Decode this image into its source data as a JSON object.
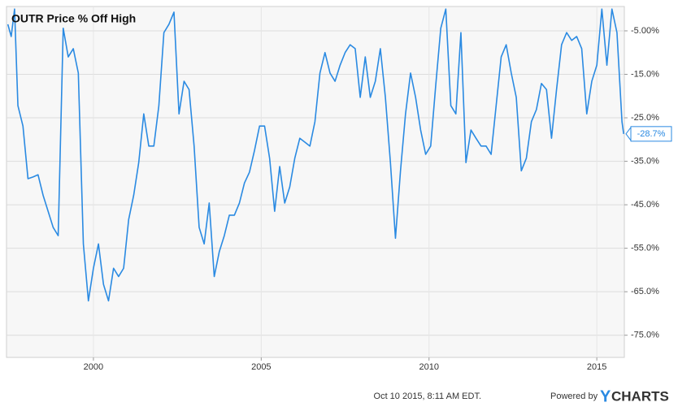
{
  "chart_data": {
    "type": "line",
    "title": "OUTR Price % Off High",
    "timestamp": "Oct 10 2015, 8:11 AM EDT.",
    "powered_by": "Powered by",
    "brand_y": "Y",
    "brand_rest": "CHARTS",
    "xlim": [
      1997.41,
      2015.82
    ],
    "ylim": [
      -80.1,
      0.6
    ],
    "xticks": [
      2000,
      2005,
      2010,
      2015
    ],
    "yticks": [
      {
        "value": -5,
        "label": "-5.00%"
      },
      {
        "value": -15,
        "label": "-15.0%"
      },
      {
        "value": -25,
        "label": "-25.0%"
      },
      {
        "value": -35,
        "label": "-35.0%"
      },
      {
        "value": -45,
        "label": "-45.0%"
      },
      {
        "value": -55,
        "label": "-55.0%"
      },
      {
        "value": -65,
        "label": "-65.0%"
      },
      {
        "value": -75,
        "label": "-75.0%"
      }
    ],
    "grid": true,
    "series": [
      {
        "name": "OUTR Price % Off High",
        "color": "#2a8ae2",
        "x": [
          1997.45,
          1997.55,
          1997.65,
          1997.75,
          1997.9,
          1998.05,
          1998.2,
          1998.35,
          1998.5,
          1998.65,
          1998.8,
          1998.95,
          1999.1,
          1999.25,
          1999.4,
          1999.55,
          1999.7,
          1999.85,
          2000,
          2000.15,
          2000.3,
          2000.45,
          2000.6,
          2000.75,
          2000.9,
          2001.05,
          2001.2,
          2001.35,
          2001.5,
          2001.65,
          2001.8,
          2001.95,
          2002.1,
          2002.25,
          2002.4,
          2002.55,
          2002.7,
          2002.85,
          2003,
          2003.15,
          2003.3,
          2003.45,
          2003.6,
          2003.75,
          2003.9,
          2004.05,
          2004.2,
          2004.35,
          2004.5,
          2004.65,
          2004.8,
          2004.95,
          2005.1,
          2005.25,
          2005.4,
          2005.55,
          2005.7,
          2005.85,
          2006,
          2006.15,
          2006.3,
          2006.45,
          2006.6,
          2006.75,
          2006.9,
          2007.05,
          2007.2,
          2007.35,
          2007.5,
          2007.65,
          2007.8,
          2007.95,
          2008.1,
          2008.25,
          2008.4,
          2008.55,
          2008.7,
          2008.85,
          2009,
          2009.15,
          2009.3,
          2009.45,
          2009.6,
          2009.75,
          2009.9,
          2010.05,
          2010.2,
          2010.35,
          2010.5,
          2010.65,
          2010.8,
          2010.95,
          2011.1,
          2011.25,
          2011.4,
          2011.55,
          2011.7,
          2011.85,
          2012,
          2012.15,
          2012.3,
          2012.45,
          2012.6,
          2012.75,
          2012.9,
          2013.05,
          2013.2,
          2013.35,
          2013.5,
          2013.65,
          2013.8,
          2013.95,
          2014.1,
          2014.25,
          2014.4,
          2014.55,
          2014.7,
          2014.85,
          2015,
          2015.15,
          2015.3,
          2015.45,
          2015.6,
          2015.75,
          2015.8
        ],
        "values": [
          -3.5,
          -6.3,
          0,
          -22.2,
          -26.9,
          -39.0,
          -38.6,
          -38.1,
          -42.8,
          -46.5,
          -50.2,
          -52.1,
          -4.4,
          -11.0,
          -9.1,
          -14.7,
          -54.0,
          -67.1,
          -59.6,
          -54.0,
          -63.3,
          -67.1,
          -59.6,
          -61.5,
          -59.6,
          -48.4,
          -42.8,
          -35.3,
          -24.1,
          -31.5,
          -31.5,
          -22.2,
          -5.4,
          -3.5,
          -0.7,
          -24.1,
          -16.6,
          -18.5,
          -31.5,
          -50.2,
          -54.0,
          -44.6,
          -61.5,
          -55.8,
          -52.1,
          -47.4,
          -47.4,
          -44.6,
          -40.0,
          -37.5,
          -32.5,
          -26.9,
          -26.9,
          -34.3,
          -46.5,
          -36.2,
          -44.6,
          -40.9,
          -34.3,
          -29.7,
          -30.6,
          -31.5,
          -25.9,
          -14.7,
          -10.0,
          -14.7,
          -16.6,
          -12.9,
          -10.0,
          -8.2,
          -9.1,
          -20.3,
          -11.0,
          -20.3,
          -16.6,
          -9.1,
          -20.3,
          -35.3,
          -52.7,
          -37.2,
          -24.1,
          -14.7,
          -20.3,
          -27.8,
          -33.4,
          -31.5,
          -17.5,
          -4.4,
          0,
          -22.2,
          -24.1,
          -5.4,
          -35.3,
          -27.8,
          -29.7,
          -31.5,
          -31.5,
          -33.4,
          -22.2,
          -11.0,
          -8.2,
          -14.7,
          -20.3,
          -37.2,
          -34.3,
          -25.9,
          -23.1,
          -17.1,
          -18.5,
          -29.7,
          -18.5,
          -8.2,
          -5.4,
          -7.2,
          -6.3,
          -9.1,
          -24.1,
          -16.6,
          -12.9,
          0,
          -12.9,
          0,
          -5.4,
          -25.9,
          -28.7
        ]
      }
    ],
    "end_label": {
      "value": -28.7,
      "label": "-28.7%"
    }
  }
}
